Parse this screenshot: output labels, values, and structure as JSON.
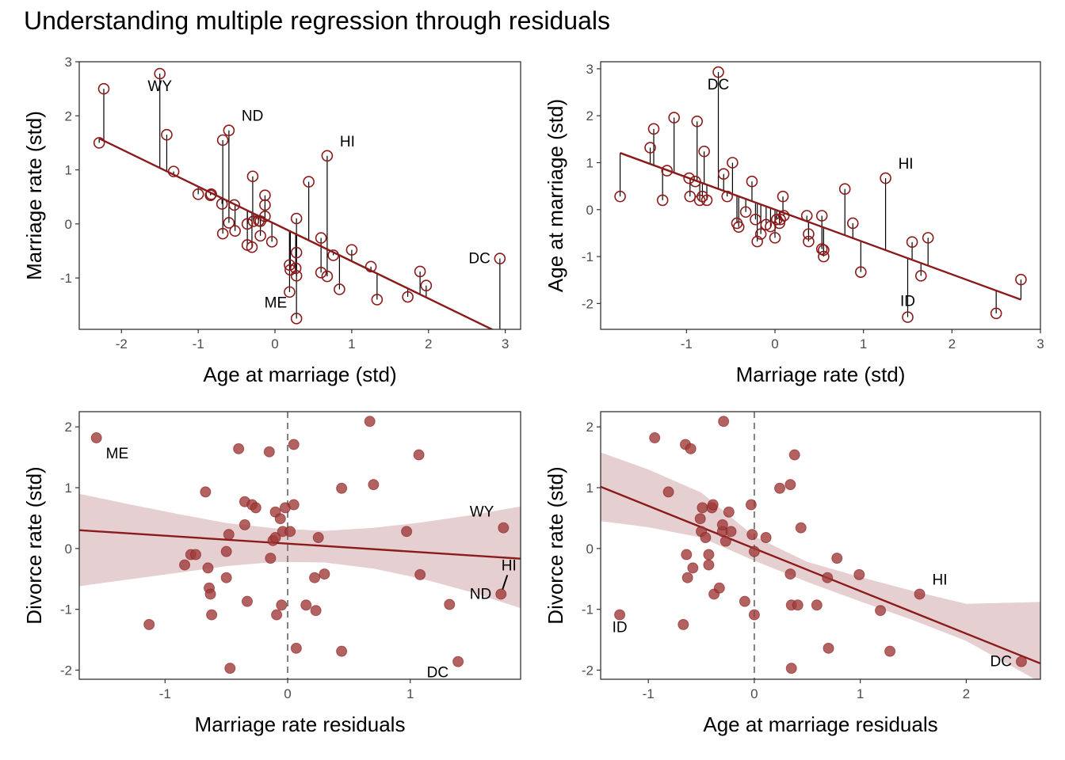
{
  "title": "Understanding multiple regression through residuals",
  "colors": {
    "accent": "#8b1a1a",
    "point_fill": "#a03b3b",
    "band": "#ddbfc0",
    "dash": "#808080",
    "frame": "#333333"
  },
  "chart_data": [
    {
      "id": "p1",
      "type": "scatter",
      "xlabel": "Age at marriage (std)",
      "ylabel": "Marriage rate (std)",
      "xlim": [
        -2.55,
        3.2
      ],
      "ylim": [
        -1.95,
        3.0
      ],
      "xticks": [
        -2,
        -1,
        0,
        1,
        2,
        3
      ],
      "yticks": [
        -1,
        0,
        1,
        2,
        3
      ],
      "tick_labels_x": [
        "-2",
        "-1",
        "0",
        "1",
        "2",
        "3"
      ],
      "tick_labels_y": [
        "-1",
        "0",
        "1",
        "2",
        "3"
      ],
      "points": [
        [
          -2.29,
          1.5
        ],
        [
          -2.23,
          2.5
        ],
        [
          -1.5,
          2.78
        ],
        [
          -1.41,
          1.65
        ],
        [
          -1.32,
          0.97
        ],
        [
          -1.0,
          0.55
        ],
        [
          -0.84,
          0.53
        ],
        [
          -0.83,
          0.55
        ],
        [
          -0.68,
          1.55
        ],
        [
          -0.69,
          0.37
        ],
        [
          -0.68,
          -0.18
        ],
        [
          -0.6,
          1.73
        ],
        [
          -0.6,
          0.02
        ],
        [
          -0.53,
          0.35
        ],
        [
          -0.52,
          -0.13
        ],
        [
          -0.36,
          0.0
        ],
        [
          -0.36,
          -0.39
        ],
        [
          -0.29,
          0.88
        ],
        [
          -0.3,
          -0.43
        ],
        [
          -0.28,
          0.05
        ],
        [
          -0.21,
          0.06
        ],
        [
          -0.19,
          -0.22
        ],
        [
          -0.19,
          0.05
        ],
        [
          -0.13,
          0.53
        ],
        [
          -0.13,
          0.35
        ],
        [
          -0.13,
          0.14
        ],
        [
          -0.04,
          -0.33
        ],
        [
          0.19,
          -0.76
        ],
        [
          0.19,
          -1.26
        ],
        [
          0.2,
          -0.85
        ],
        [
          0.27,
          -0.82
        ],
        [
          0.28,
          -0.53
        ],
        [
          0.28,
          -0.96
        ],
        [
          0.28,
          -1.75
        ],
        [
          0.28,
          0.1
        ],
        [
          0.44,
          0.78
        ],
        [
          0.6,
          -0.26
        ],
        [
          0.6,
          -0.9
        ],
        [
          0.68,
          1.26
        ],
        [
          0.68,
          -0.97
        ],
        [
          0.76,
          -0.58
        ],
        [
          0.84,
          -1.21
        ],
        [
          1.0,
          -0.48
        ],
        [
          1.25,
          -0.79
        ],
        [
          1.33,
          -1.4
        ],
        [
          1.73,
          -1.35
        ],
        [
          1.89,
          -0.88
        ],
        [
          1.97,
          -1.14
        ],
        [
          2.93,
          -0.64
        ]
      ],
      "fit": {
        "intercept": 0.0,
        "slope": -0.69
      },
      "labels": [
        {
          "text": "WY",
          "x": -1.5,
          "y": 2.78,
          "pos": "below"
        },
        {
          "text": "ND",
          "x": -0.6,
          "y": 1.73,
          "pos": "upper-right"
        },
        {
          "text": "HI",
          "x": 0.68,
          "y": 1.26,
          "pos": "upper-right"
        },
        {
          "text": "ME",
          "x": 0.28,
          "y": -1.75,
          "pos": "upper-left"
        },
        {
          "text": "DC",
          "x": 2.93,
          "y": -0.64,
          "pos": "left"
        }
      ],
      "residual_segments": true
    },
    {
      "id": "p2",
      "type": "scatter",
      "xlabel": "Marriage rate (std)",
      "ylabel": "Age at marriage (std)",
      "xlim": [
        -1.97,
        3.0
      ],
      "ylim": [
        -2.55,
        3.15
      ],
      "xticks": [
        -1,
        0,
        1,
        2,
        3
      ],
      "yticks": [
        -2,
        -1,
        0,
        1,
        2,
        3
      ],
      "tick_labels_x": [
        "-1",
        "0",
        "1",
        "2",
        "3"
      ],
      "tick_labels_y": [
        "-2",
        "-1",
        "0",
        "1",
        "2",
        "3"
      ],
      "points": [
        [
          -1.75,
          0.28
        ],
        [
          -1.41,
          1.32
        ],
        [
          -1.37,
          1.72
        ],
        [
          -1.27,
          0.2
        ],
        [
          -1.22,
          0.83
        ],
        [
          -1.14,
          1.96
        ],
        [
          -0.97,
          0.67
        ],
        [
          -0.96,
          0.28
        ],
        [
          -0.9,
          0.6
        ],
        [
          -0.88,
          1.88
        ],
        [
          -0.85,
          0.2
        ],
        [
          -0.82,
          0.28
        ],
        [
          -0.8,
          1.24
        ],
        [
          -0.77,
          0.2
        ],
        [
          -0.64,
          2.93
        ],
        [
          -0.58,
          0.76
        ],
        [
          -0.54,
          0.28
        ],
        [
          -0.48,
          1.0
        ],
        [
          -0.43,
          -0.29
        ],
        [
          -0.41,
          -0.37
        ],
        [
          -0.33,
          -0.05
        ],
        [
          -0.26,
          0.6
        ],
        [
          -0.22,
          -0.21
        ],
        [
          -0.2,
          -0.68
        ],
        [
          -0.16,
          -0.52
        ],
        [
          -0.1,
          -0.32
        ],
        [
          -0.05,
          -0.36
        ],
        [
          0.0,
          -0.6
        ],
        [
          0.02,
          -0.21
        ],
        [
          0.05,
          -0.29
        ],
        [
          0.06,
          -0.21
        ],
        [
          0.09,
          0.28
        ],
        [
          0.1,
          -0.13
        ],
        [
          0.36,
          -0.13
        ],
        [
          0.38,
          -0.52
        ],
        [
          0.38,
          -0.68
        ],
        [
          0.53,
          -0.13
        ],
        [
          0.53,
          -0.84
        ],
        [
          0.55,
          -0.86
        ],
        [
          0.55,
          -1.0
        ],
        [
          0.79,
          0.44
        ],
        [
          0.88,
          -0.29
        ],
        [
          0.97,
          -1.33
        ],
        [
          1.25,
          0.67
        ],
        [
          1.5,
          -2.29
        ],
        [
          1.55,
          -0.69
        ],
        [
          1.65,
          -1.41
        ],
        [
          1.73,
          -0.6
        ],
        [
          2.5,
          -2.21
        ],
        [
          2.78,
          -1.49
        ]
      ],
      "fit": {
        "intercept": 0.0,
        "slope": -0.69
      },
      "labels": [
        {
          "text": "DC",
          "x": -0.64,
          "y": 2.93,
          "pos": "below"
        },
        {
          "text": "HI",
          "x": 1.25,
          "y": 0.67,
          "pos": "upper-right"
        },
        {
          "text": "ID",
          "x": 1.5,
          "y": -2.29,
          "pos": "above"
        }
      ],
      "residual_segments": true
    },
    {
      "id": "p3",
      "type": "scatter",
      "xlabel": "Marriage rate residuals",
      "ylabel": "Divorce rate (std)",
      "xlim": [
        -1.7,
        1.9
      ],
      "ylim": [
        -2.15,
        2.25
      ],
      "xticks": [
        -1,
        0,
        1
      ],
      "yticks": [
        -2,
        -1,
        0,
        1,
        2
      ],
      "tick_labels_x": [
        "-1",
        "0",
        "1"
      ],
      "tick_labels_y": [
        "-2",
        "-1",
        "0",
        "1",
        "2"
      ],
      "points": [
        [
          -1.56,
          1.82
        ],
        [
          -1.13,
          -1.25
        ],
        [
          -0.84,
          -0.27
        ],
        [
          -0.79,
          -0.1
        ],
        [
          -0.75,
          -0.1
        ],
        [
          -0.67,
          0.93
        ],
        [
          -0.65,
          -0.32
        ],
        [
          -0.64,
          -0.65
        ],
        [
          -0.63,
          -0.75
        ],
        [
          -0.62,
          -1.09
        ],
        [
          -0.5,
          -0.05
        ],
        [
          -0.5,
          -0.48
        ],
        [
          -0.48,
          0.23
        ],
        [
          -0.47,
          -1.97
        ],
        [
          -0.4,
          1.64
        ],
        [
          -0.35,
          0.77
        ],
        [
          -0.35,
          0.39
        ],
        [
          -0.33,
          -0.87
        ],
        [
          -0.29,
          0.72
        ],
        [
          -0.26,
          0.67
        ],
        [
          -0.15,
          1.59
        ],
        [
          -0.14,
          -0.16
        ],
        [
          -0.12,
          0.13
        ],
        [
          -0.1,
          0.18
        ],
        [
          -0.1,
          0.6
        ],
        [
          -0.09,
          -1.09
        ],
        [
          -0.06,
          0.49
        ],
        [
          -0.05,
          -0.93
        ],
        [
          -0.04,
          0.28
        ],
        [
          -0.02,
          0.67
        ],
        [
          0.02,
          0.28
        ],
        [
          0.05,
          0.72
        ],
        [
          0.05,
          1.71
        ],
        [
          0.07,
          -1.64
        ],
        [
          0.15,
          -0.93
        ],
        [
          0.22,
          -0.48
        ],
        [
          0.23,
          -1.02
        ],
        [
          0.25,
          0.18
        ],
        [
          0.3,
          -0.42
        ],
        [
          0.44,
          0.99
        ],
        [
          0.44,
          -1.69
        ],
        [
          0.67,
          2.09
        ],
        [
          0.7,
          1.05
        ],
        [
          0.97,
          0.28
        ],
        [
          1.07,
          1.54
        ],
        [
          1.08,
          -0.43
        ],
        [
          1.32,
          -0.92
        ],
        [
          1.39,
          -1.86
        ],
        [
          1.74,
          -0.75
        ],
        [
          1.76,
          0.34
        ]
      ],
      "fit": {
        "intercept": 0.08,
        "slope": -0.13
      },
      "band": {
        "x": [
          -1.7,
          -1.3,
          -0.9,
          -0.5,
          -0.1,
          0.3,
          0.7,
          1.1,
          1.5,
          1.9
        ],
        "lower": [
          -0.62,
          -0.51,
          -0.4,
          -0.29,
          -0.22,
          -0.23,
          -0.33,
          -0.5,
          -0.72,
          -0.98
        ],
        "upper": [
          0.9,
          0.73,
          0.57,
          0.42,
          0.33,
          0.29,
          0.34,
          0.43,
          0.55,
          0.69
        ]
      },
      "vline": 0,
      "labels": [
        {
          "text": "ME",
          "x": -1.56,
          "y": 1.82,
          "pos": "lower-right"
        },
        {
          "text": "WY",
          "x": 1.76,
          "y": 0.34,
          "pos": "upper-left"
        },
        {
          "text": "HI",
          "x": 1.74,
          "y": -0.75,
          "pos": "above-leader"
        },
        {
          "text": "ND",
          "x": 1.74,
          "y": -0.75,
          "pos": "left"
        },
        {
          "text": "DC",
          "x": 1.39,
          "y": -1.86,
          "pos": "lower-left"
        }
      ]
    },
    {
      "id": "p4",
      "type": "scatter",
      "xlabel": "Age at marriage residuals",
      "ylabel": "Divorce rate (std)",
      "xlim": [
        -1.45,
        2.7
      ],
      "ylim": [
        -2.15,
        2.25
      ],
      "xticks": [
        -1,
        0,
        1,
        2
      ],
      "yticks": [
        -2,
        -1,
        0,
        1,
        2
      ],
      "tick_labels_x": [
        "-1",
        "0",
        "1",
        "2"
      ],
      "tick_labels_y": [
        "-2",
        "-1",
        "0",
        "1",
        "2"
      ],
      "points": [
        [
          -1.27,
          -1.09
        ],
        [
          -0.94,
          1.82
        ],
        [
          -0.81,
          0.93
        ],
        [
          -0.67,
          -1.25
        ],
        [
          -0.65,
          1.71
        ],
        [
          -0.64,
          -0.1
        ],
        [
          -0.63,
          -0.48
        ],
        [
          -0.6,
          1.64
        ],
        [
          -0.58,
          -0.32
        ],
        [
          -0.51,
          0.49
        ],
        [
          -0.5,
          0.28
        ],
        [
          -0.49,
          0.67
        ],
        [
          -0.46,
          0.18
        ],
        [
          -0.43,
          -0.1
        ],
        [
          -0.43,
          -0.27
        ],
        [
          -0.4,
          0.67
        ],
        [
          -0.39,
          0.72
        ],
        [
          -0.38,
          -0.75
        ],
        [
          -0.33,
          -0.65
        ],
        [
          -0.3,
          0.28
        ],
        [
          -0.3,
          0.39
        ],
        [
          -0.29,
          2.09
        ],
        [
          -0.27,
          0.12
        ],
        [
          -0.24,
          0.6
        ],
        [
          -0.22,
          0.28
        ],
        [
          -0.09,
          -0.87
        ],
        [
          -0.03,
          0.72
        ],
        [
          -0.02,
          0.23
        ],
        [
          0.0,
          -1.09
        ],
        [
          0.0,
          -0.05
        ],
        [
          0.11,
          0.18
        ],
        [
          0.24,
          0.99
        ],
        [
          0.34,
          1.05
        ],
        [
          0.34,
          -0.42
        ],
        [
          0.35,
          -0.93
        ],
        [
          0.35,
          -1.97
        ],
        [
          0.38,
          1.54
        ],
        [
          0.41,
          -0.93
        ],
        [
          0.44,
          0.34
        ],
        [
          0.59,
          -0.93
        ],
        [
          0.69,
          -0.48
        ],
        [
          0.7,
          -1.64
        ],
        [
          0.78,
          -0.16
        ],
        [
          0.99,
          -0.43
        ],
        [
          1.19,
          -1.02
        ],
        [
          1.28,
          -1.69
        ],
        [
          1.56,
          -0.75
        ],
        [
          2.52,
          -1.86
        ]
      ],
      "fit": {
        "intercept": 0.0,
        "slope": -0.7
      },
      "band": {
        "x": [
          -1.45,
          -1.0,
          -0.5,
          0.0,
          0.5,
          1.0,
          1.5,
          2.0,
          2.7
        ],
        "lower": [
          0.45,
          0.35,
          0.18,
          -0.2,
          -0.55,
          -0.87,
          -1.18,
          -1.52,
          -2.2
        ],
        "upper": [
          1.58,
          1.3,
          0.92,
          0.2,
          -0.22,
          -0.47,
          -0.7,
          -0.91,
          -0.88
        ]
      },
      "vline": 0,
      "labels": [
        {
          "text": "ID",
          "x": -1.27,
          "y": -1.09,
          "pos": "below"
        },
        {
          "text": "HI",
          "x": 1.56,
          "y": -0.75,
          "pos": "upper-right"
        },
        {
          "text": "DC",
          "x": 2.52,
          "y": -1.86,
          "pos": "left"
        }
      ]
    }
  ]
}
